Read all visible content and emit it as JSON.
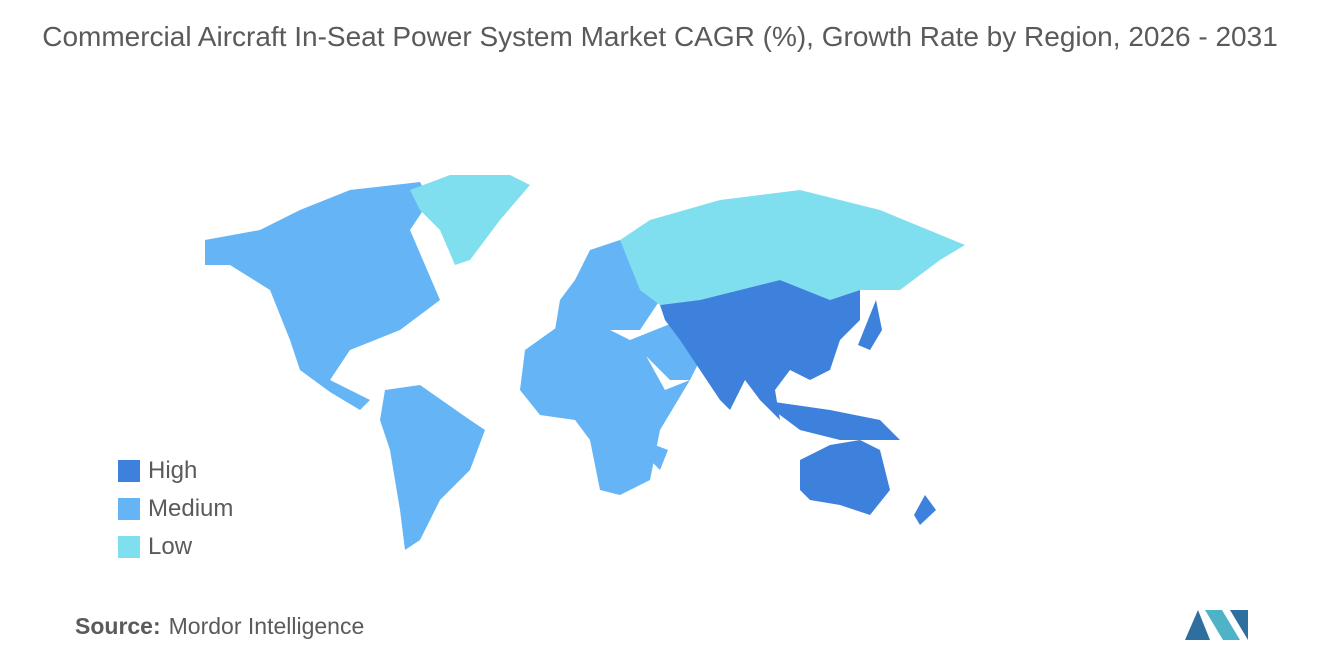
{
  "title": "Commercial Aircraft In-Seat Power System Market CAGR (%), Growth Rate by Region, 2026 - 2031",
  "legend": [
    {
      "label": "High",
      "color": "#3d81dc"
    },
    {
      "label": "Medium",
      "color": "#64b4f6"
    },
    {
      "label": "Low",
      "color": "#7fdfef"
    }
  ],
  "source": {
    "label": "Source:",
    "text": "Mordor Intelligence"
  }
}
